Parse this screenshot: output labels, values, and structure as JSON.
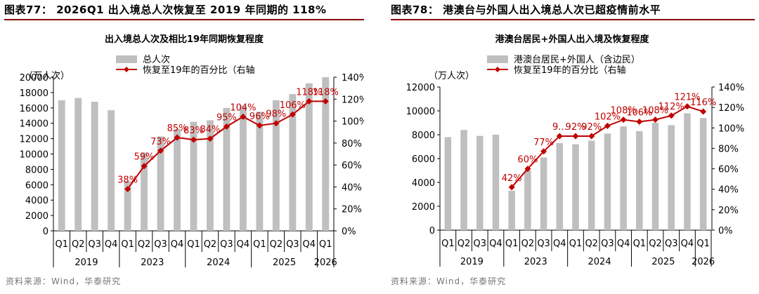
{
  "panels": [
    {
      "fig_title": "图表77： 2026Q1 出入境总人次恢复至 2019 年同期的 118%",
      "source": "资料来源：Wind，华泰研究",
      "chart_data": {
        "type": "bar",
        "title": "出入境总人次及相比19年同期恢复程度",
        "ylabel": "（万人次）",
        "ylim": [
          0,
          20000
        ],
        "y_ticks": [
          0,
          2000,
          4000,
          6000,
          8000,
          10000,
          12000,
          14000,
          16000,
          18000,
          20000
        ],
        "y2lim": [
          0,
          140
        ],
        "y2_ticks": [
          "0%",
          "20%",
          "40%",
          "60%",
          "80%",
          "100%",
          "120%",
          "140%"
        ],
        "categories": [
          "Q1",
          "Q2",
          "Q3",
          "Q4",
          "Q1",
          "Q2",
          "Q3",
          "Q4",
          "Q1",
          "Q2",
          "Q3",
          "Q4",
          "Q1",
          "Q2",
          "Q3",
          "Q4",
          "Q1"
        ],
        "year_groups": [
          {
            "label": "2019",
            "count": 4
          },
          {
            "label": "2023",
            "count": 4
          },
          {
            "label": "2024",
            "count": 4
          },
          {
            "label": "2025",
            "count": 4
          },
          {
            "label": "2026",
            "count": 1
          }
        ],
        "series": [
          {
            "name": "总人次",
            "type": "bar",
            "axis": "left",
            "color": "#bfbfbf",
            "values": [
              17000,
              17300,
              16800,
              15700,
              6500,
              10200,
              12300,
              13300,
              14200,
              14400,
              16000,
              16300,
              15500,
              17000,
              17800,
              19200,
              20000
            ]
          },
          {
            "name": "恢复至19年的百分比（右轴",
            "type": "line",
            "axis": "right",
            "color": "#c00000",
            "values": [
              null,
              null,
              null,
              null,
              38,
              59,
              73,
              85,
              83,
              84,
              95,
              104,
              96,
              98,
              106,
              118,
              118
            ],
            "labels": [
              "",
              "",
              "",
              "",
              "38%",
              "59%",
              "73%",
              "85%",
              "83%",
              "84%",
              "95%",
              "104%",
              "96%",
              "98%",
              "106%",
              "118%",
              "118%"
            ]
          }
        ],
        "legend_position": "top-left",
        "grid": false
      }
    },
    {
      "fig_title": "图表78： 港澳台与外国人出入境总人次已超疫情前水平",
      "source": "资料来源：Wind，华泰研究",
      "chart_data": {
        "type": "bar",
        "title": "港澳台居民+外国人出入境及恢复程度",
        "ylabel": "（万人次）",
        "ylim": [
          0,
          12000
        ],
        "y_ticks": [
          0,
          2000,
          4000,
          6000,
          8000,
          10000,
          12000
        ],
        "y2lim": [
          0,
          140
        ],
        "y2_ticks": [
          "0%",
          "20%",
          "40%",
          "60%",
          "80%",
          "100%",
          "120%",
          "140%"
        ],
        "categories": [
          "Q1",
          "Q2",
          "Q3",
          "Q4",
          "Q1",
          "Q2",
          "Q3",
          "Q4",
          "Q1",
          "Q2",
          "Q3",
          "Q4",
          "Q1",
          "Q2",
          "Q3",
          "Q4",
          "Q1"
        ],
        "year_groups": [
          {
            "label": "2019",
            "count": 4
          },
          {
            "label": "2023",
            "count": 4
          },
          {
            "label": "2024",
            "count": 4
          },
          {
            "label": "2025",
            "count": 4
          },
          {
            "label": "2026",
            "count": 1
          }
        ],
        "series": [
          {
            "name": "港澳台居民+外国人（含边民）",
            "type": "bar",
            "axis": "left",
            "color": "#bfbfbf",
            "values": [
              7800,
              8400,
              7900,
              8000,
              3300,
              5000,
              6100,
              7300,
              7200,
              7500,
              8100,
              8700,
              8300,
              9000,
              8800,
              9800,
              9400
            ]
          },
          {
            "name": "恢复至19年的百分比（右轴",
            "type": "line",
            "axis": "right",
            "color": "#c00000",
            "values": [
              null,
              null,
              null,
              null,
              42,
              60,
              77,
              92,
              92,
              92,
              102,
              108,
              106,
              108,
              112,
              121,
              116
            ],
            "labels": [
              "",
              "",
              "",
              "",
              "42%",
              "60%",
              "77%",
              "9...",
              "92%",
              "92%",
              "102%",
              "108%",
              "106%",
              "108%",
              "112%",
              "121%",
              "116%"
            ]
          }
        ],
        "legend_position": "top-left",
        "grid": false
      }
    }
  ]
}
